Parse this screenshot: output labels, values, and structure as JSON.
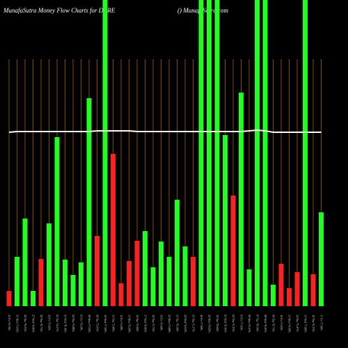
{
  "chart_data": {
    "type": "bar",
    "title": "MunafaSutra  Money Flow  Charts for DCRE",
    "subtitle": "() MunafaSutra.com",
    "categories": [
      "22 Fri 79.76%",
      "25 Mon 75.61%",
      "26 Tue 76.01%",
      "27 Wed 74.06%",
      "28 Thu 76.71%",
      "29 Fri 76.42%",
      "02 Tue 74.27%",
      "03 Wed 78.19%",
      "04 Thu 75.88%",
      "05 Fri 76.14%",
      "08 Mon 77.61%",
      "09 Tue 75.03%",
      "10 Wed 77.39%",
      "11 Thu 73.98%",
      "12 Fri 75.28%",
      "15 Mon 76.29%",
      "16 Tue 75.94%",
      "17 Wed 76.80%",
      "18 Thu 75.72%",
      "19 Fri 76.44%",
      "22 Mon 75.68%",
      "23 Tue 76.34%",
      "24 Wed 74.91%",
      "25 Thu 75.17%",
      "26 Fri 77.90%",
      "29 Mon 78.62%",
      "30 Tue 78.64%",
      "01 Wed 76.30%",
      "02 Thu 75.15%",
      "03 Fri 77.03%",
      "06 Mon 76.15%",
      "07 Tue 78.54%",
      "08 Wed 79.20%",
      "09 Thu 76.71%",
      "10 Fri 75.95%",
      "13 Mon 74.58%",
      "14 Tue 75.47%",
      "15 Wed 77.08%",
      "16 Thu 76.13%",
      "17 Fri 77.06%"
    ],
    "series": [
      {
        "name": "money flow",
        "values": [
          22,
          71,
          126,
          22,
          68,
          119,
          243,
          67,
          45,
          63,
          299,
          101,
          440,
          219,
          33,
          65,
          94,
          108,
          56,
          93,
          71,
          153,
          86,
          71,
          440,
          440,
          440,
          246,
          159,
          307,
          53,
          440,
          440,
          31,
          61,
          26,
          49,
          440,
          46,
          135
        ],
        "colors": [
          "#ff2020",
          "#20ff20",
          "#20ff20",
          "#20ff20",
          "#ff2020",
          "#20ff20",
          "#20ff20",
          "#20ff20",
          "#20ff20",
          "#20ff20",
          "#20ff20",
          "#ff2020",
          "#20ff20",
          "#ff2020",
          "#ff2020",
          "#ff2020",
          "#ff2020",
          "#20ff20",
          "#20ff20",
          "#20ff20",
          "#20ff20",
          "#20ff20",
          "#20ff20",
          "#ff2020",
          "#20ff20",
          "#20ff20",
          "#20ff20",
          "#20ff20",
          "#ff2020",
          "#20ff20",
          "#20ff20",
          "#20ff20",
          "#20ff20",
          "#20ff20",
          "#ff2020",
          "#ff2020",
          "#ff2020",
          "#20ff20",
          "#ff2020",
          "#20ff20"
        ]
      },
      {
        "name": "price",
        "type": "line",
        "color": "#ffffff",
        "values": [
          250,
          251,
          251,
          251,
          251,
          251,
          251,
          251,
          251,
          251,
          251,
          252,
          252,
          252,
          252,
          252,
          251,
          251,
          251,
          251,
          251,
          251,
          251,
          251,
          251,
          251,
          251,
          251,
          251,
          251,
          252,
          253,
          252,
          250,
          250,
          250,
          250,
          250,
          250,
          250
        ]
      }
    ],
    "ylim": [
      0,
      440
    ],
    "grid_color": "#b06000"
  }
}
